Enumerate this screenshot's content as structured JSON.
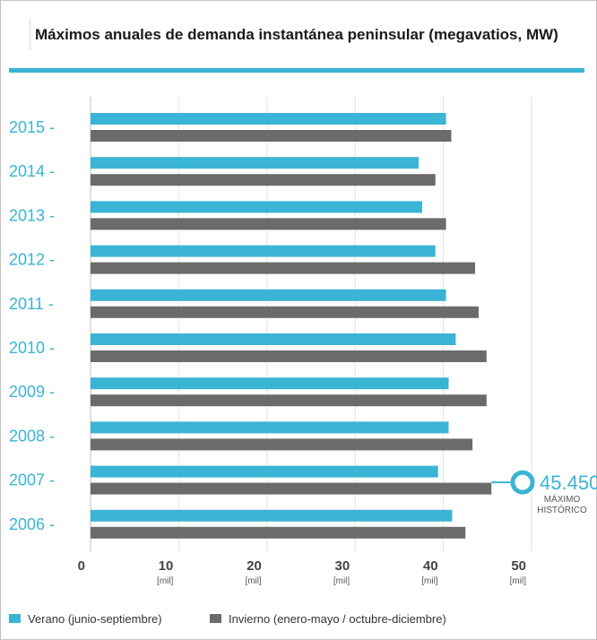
{
  "title": "Máximos anuales de demanda instantánea peninsular (megavatios, MW)",
  "colors": {
    "summer": "#3ab4d4",
    "winter": "#6b6b6b",
    "accent": "#3ab4d4",
    "year_label": "#3ab4d4",
    "tick_label": "#444444"
  },
  "legend": {
    "summer_label": "Verano (junio-septiembre)",
    "winter_label": "Invierno (enero-mayo / octubre-diciembre)"
  },
  "annotation": {
    "value": "45.450",
    "line1": "MÁXIMO",
    "line2": "HISTÓRICO",
    "year": "2007"
  },
  "chart_data": {
    "type": "bar",
    "orientation": "horizontal",
    "title": "Máximos anuales de demanda instantánea peninsular (megavatios, MW)",
    "categories": [
      "2015",
      "2014",
      "2013",
      "2012",
      "2011",
      "2010",
      "2009",
      "2008",
      "2007",
      "2006"
    ],
    "category_suffix": " -",
    "series": [
      {
        "name": "Verano (junio-septiembre)",
        "values": [
          40.3,
          37.2,
          37.6,
          39.1,
          40.3,
          41.4,
          40.6,
          40.6,
          39.4,
          41.0
        ]
      },
      {
        "name": "Invierno (enero-mayo / octubre-diciembre)",
        "values": [
          40.9,
          39.1,
          40.3,
          43.6,
          44.0,
          44.9,
          44.9,
          43.3,
          45.45,
          42.5
        ]
      }
    ],
    "xlim": [
      0,
      50
    ],
    "xticks": [
      0,
      10,
      20,
      30,
      40,
      50
    ],
    "xtick_labels": [
      "0",
      "10",
      "20",
      "30",
      "40",
      "50"
    ],
    "xtick_unit": "[mil]",
    "grid": "vertical",
    "legend_position": "bottom"
  }
}
